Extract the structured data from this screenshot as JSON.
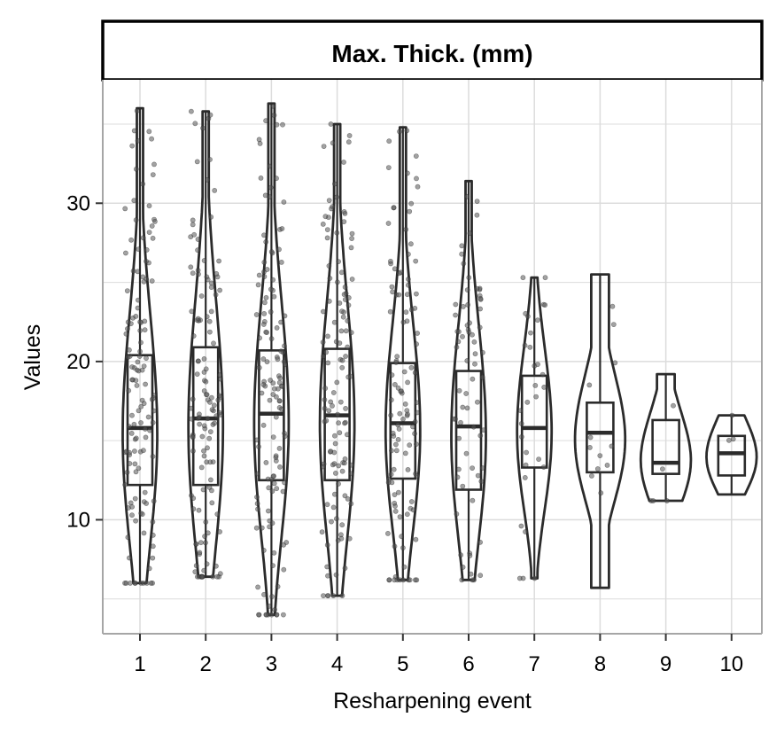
{
  "chart_data": {
    "type": "violin",
    "panel_title": "Max. Thick. (mm)",
    "xlabel": "Resharpening event",
    "ylabel": "Values",
    "categories": [
      "1",
      "2",
      "3",
      "4",
      "5",
      "6",
      "7",
      "8",
      "9",
      "10"
    ],
    "y_ticks": [
      10,
      20,
      30
    ],
    "ylim": [
      2.8,
      37.8
    ],
    "grid": true,
    "colors": {
      "outline": "#2b2b2b",
      "points": "#555555",
      "grid": "#dcdcdc",
      "panel_border": "#a6a6a6"
    },
    "groups": [
      {
        "category": "1",
        "min": 6.0,
        "max": 36.0,
        "q1": 12.2,
        "median": 15.8,
        "q3": 20.4,
        "n_points": 130
      },
      {
        "category": "2",
        "min": 6.4,
        "max": 35.8,
        "q1": 12.2,
        "median": 16.4,
        "q3": 20.9,
        "n_points": 130
      },
      {
        "category": "3",
        "min": 4.0,
        "max": 36.3,
        "q1": 12.5,
        "median": 16.7,
        "q3": 20.7,
        "n_points": 130
      },
      {
        "category": "4",
        "min": 5.2,
        "max": 35.0,
        "q1": 12.5,
        "median": 16.6,
        "q3": 20.8,
        "n_points": 120
      },
      {
        "category": "5",
        "min": 6.2,
        "max": 34.8,
        "q1": 12.6,
        "median": 16.1,
        "q3": 19.9,
        "n_points": 110
      },
      {
        "category": "6",
        "min": 6.2,
        "max": 31.4,
        "q1": 11.9,
        "median": 15.9,
        "q3": 19.4,
        "n_points": 70
      },
      {
        "category": "7",
        "min": 6.3,
        "max": 25.3,
        "q1": 13.3,
        "median": 15.8,
        "q3": 19.1,
        "n_points": 30
      },
      {
        "category": "8",
        "min": 5.7,
        "max": 25.5,
        "q1": 13.0,
        "median": 15.5,
        "q3": 17.4,
        "n_points": 12
      },
      {
        "category": "9",
        "min": 11.2,
        "max": 19.2,
        "q1": 12.9,
        "median": 13.6,
        "q3": 16.3,
        "n_points": 5
      },
      {
        "category": "10",
        "min": 11.6,
        "max": 16.6,
        "q1": 12.8,
        "median": 14.2,
        "q3": 15.3,
        "n_points": 3
      }
    ]
  }
}
